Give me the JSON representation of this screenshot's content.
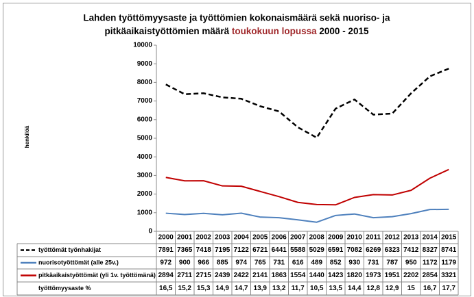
{
  "chart_data": {
    "type": "line",
    "title_line1": "Lahden työttömyysaste ja työttömien kokonaismäärä sekä nuoriso- ja",
    "title_line2": "pitkäaikaistyöttömien määrä",
    "title_highlight": "toukokuun lopussa",
    "title_end": "2000 - 2015",
    "ylabel": "henkilöä",
    "categories": [
      "2000",
      "2001",
      "2002",
      "2003",
      "2004",
      "2005",
      "2006",
      "2007",
      "2008",
      "2009",
      "2010",
      "2011",
      "2012",
      "2013",
      "2014",
      "2015"
    ],
    "ylim": [
      0,
      10000
    ],
    "yticks": [
      0,
      1000,
      2000,
      3000,
      4000,
      5000,
      6000,
      7000,
      8000,
      9000,
      10000
    ],
    "grid": false,
    "series": [
      {
        "name": "työttömät työnhakijat",
        "color": "#000000",
        "dashed": true,
        "values": [
          7891,
          7365,
          7418,
          7195,
          7122,
          6721,
          6441,
          5588,
          5029,
          6591,
          7082,
          6269,
          6323,
          7412,
          8327,
          8741
        ]
      },
      {
        "name": "nuorisotyöttömät (alle 25v.)",
        "color": "#4f81bd",
        "dashed": false,
        "values": [
          972,
          900,
          966,
          885,
          974,
          765,
          731,
          616,
          489,
          852,
          930,
          731,
          787,
          950,
          1172,
          1179
        ]
      },
      {
        "name": "pitkäaikaistyöttömät (yli 1v. työttömänä)",
        "color": "#c00000",
        "dashed": false,
        "values": [
          2894,
          2711,
          2715,
          2439,
          2422,
          2141,
          1863,
          1554,
          1440,
          1423,
          1820,
          1973,
          1951,
          2202,
          2854,
          3321
        ]
      }
    ],
    "rate_row": {
      "name": "työttömyysaste %",
      "values": [
        "16,5",
        "15,2",
        "15,3",
        "14,9",
        "14,7",
        "13,9",
        "13,2",
        "11,7",
        "10,5",
        "13,5",
        "14,4",
        "12,8",
        "12,9",
        "15",
        "16,7",
        "17,7"
      ]
    }
  }
}
